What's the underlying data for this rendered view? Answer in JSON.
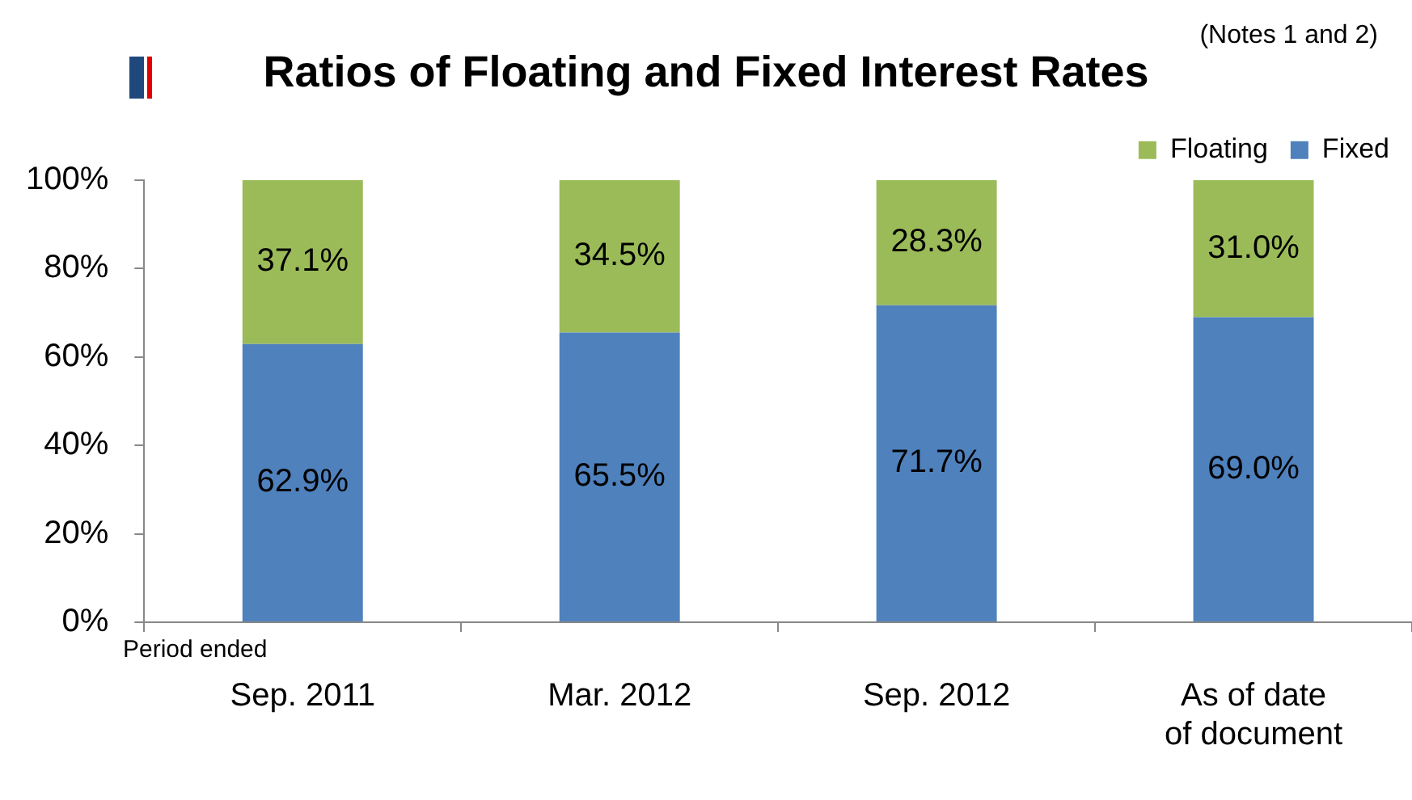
{
  "chart_data": {
    "type": "bar",
    "title": "Ratios of Floating and Fixed Interest Rates",
    "stacked": true,
    "categories": [
      "Sep. 2011",
      "Mar. 2012",
      "Sep. 2012",
      "As of date of document"
    ],
    "series": [
      {
        "name": "Fixed",
        "color": "#4f81bd",
        "values": [
          62.9,
          65.5,
          71.7,
          69.0
        ],
        "value_labels": [
          "62.9%",
          "65.5%",
          "71.7%",
          "69.0%"
        ]
      },
      {
        "name": "Floating",
        "color": "#9bbb59",
        "values": [
          37.1,
          34.5,
          28.3,
          31.0
        ],
        "value_labels": [
          "37.1%",
          "34.5%",
          "28.3%",
          "31.0%"
        ]
      }
    ],
    "ylim": [
      0,
      100
    ],
    "yticks": [
      {
        "value": 0,
        "label": "0%"
      },
      {
        "value": 20,
        "label": "20%"
      },
      {
        "value": 40,
        "label": "40%"
      },
      {
        "value": 60,
        "label": "60%"
      },
      {
        "value": 80,
        "label": "80%"
      },
      {
        "value": 100,
        "label": "100%"
      }
    ],
    "grid": false,
    "legend": "top right",
    "annotations": [
      "(Notes 1 and 2)",
      "Period ended"
    ]
  }
}
